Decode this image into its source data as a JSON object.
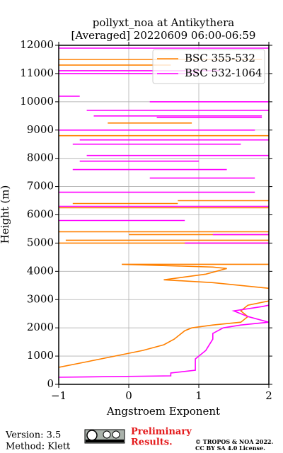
{
  "chart_data": {
    "type": "line",
    "title": "pollyxt_noa at Antikythera",
    "subtitle": "[Averaged] 20220609 06:00-06:59",
    "xlabel": "Angstroem Exponent",
    "ylabel": "Height (m)",
    "xlim": [
      -1,
      2
    ],
    "ylim": [
      0,
      12000
    ],
    "xticks": [
      {
        "value": -1,
        "label": "−1"
      },
      0,
      1,
      2
    ],
    "yticks": [
      0,
      1000,
      2000,
      3000,
      4000,
      5000,
      6000,
      7000,
      8000,
      9000,
      10000,
      11000,
      12000
    ],
    "grid": true,
    "legend": "upper right",
    "series": [
      {
        "name": "BSC 355-532",
        "color": "#ff8000",
        "x": [
          -1,
          -0.6,
          -0.2,
          0.2,
          0.5,
          0.65,
          0.8,
          0.9,
          1.2,
          1.6,
          1.7,
          1.6,
          1.7,
          2,
          null,
          2,
          1.6,
          1.2,
          0.5,
          0.8,
          1.1,
          1.4,
          1.2,
          -0.1,
          2,
          null,
          -1,
          2,
          null,
          -0.9,
          2,
          null,
          0,
          2,
          null,
          -1,
          2,
          null,
          -0.8,
          0.7,
          null,
          -1,
          2,
          null,
          0.7,
          2,
          null,
          -1,
          2,
          null,
          -0.3,
          0.9,
          null,
          -1,
          0.6,
          null,
          -1,
          1.9
        ],
        "y": [
          600,
          800,
          1000,
          1200,
          1400,
          1600,
          1900,
          2000,
          2100,
          2200,
          2400,
          2600,
          2800,
          2950,
          null,
          3400,
          3500,
          3600,
          3700,
          3800,
          3900,
          4100,
          4150,
          4250,
          4250,
          null,
          5000,
          5000,
          null,
          5100,
          5100,
          null,
          5300,
          5300,
          null,
          5400,
          5400,
          null,
          6400,
          6400,
          null,
          6250,
          6250,
          null,
          6500,
          6500,
          null,
          8800,
          8800,
          null,
          9250,
          9250,
          null,
          11300,
          11300,
          null,
          11500,
          11500
        ]
      },
      {
        "name": "BSC 532-1064",
        "color": "#ff00ff",
        "x": [
          -1,
          0.6,
          0.6,
          0.95,
          0.95,
          0.95,
          1.1,
          1.2,
          1.2,
          1.35,
          1.6,
          2,
          1.7,
          1.5,
          1.9,
          2,
          null,
          0.8,
          2,
          null,
          1.2,
          2,
          null,
          -1,
          0.8,
          null,
          -1,
          2,
          null,
          -1,
          1.8,
          null,
          0.3,
          1.8,
          null,
          -0.8,
          1.4,
          null,
          -0.7,
          1,
          null,
          -0.6,
          2,
          null,
          -0.8,
          1.6,
          null,
          -0.7,
          2,
          null,
          -1,
          1.8,
          null,
          0.4,
          1.9,
          null,
          -0.6,
          2,
          null,
          -0.5,
          1.9,
          null,
          0.3,
          2,
          null,
          -1,
          -0.7,
          null,
          -1,
          1,
          null,
          -1,
          1.3,
          null,
          -1,
          2
        ],
        "y": [
          250,
          300,
          400,
          500,
          700,
          900,
          1200,
          1600,
          1800,
          2000,
          2100,
          2200,
          2400,
          2600,
          2750,
          2800,
          null,
          5000,
          5000,
          null,
          5300,
          5300,
          null,
          5800,
          5800,
          null,
          6300,
          6300,
          null,
          6800,
          6800,
          null,
          7300,
          7300,
          null,
          7600,
          7600,
          null,
          7900,
          7900,
          null,
          8100,
          8100,
          null,
          8500,
          8500,
          null,
          8650,
          8650,
          null,
          9000,
          9000,
          null,
          9450,
          9450,
          null,
          9700,
          9700,
          null,
          9500,
          9500,
          null,
          10000,
          10000,
          null,
          10200,
          10200,
          null,
          11000,
          11000,
          null,
          11100,
          11100,
          null,
          11900,
          11900
        ]
      }
    ]
  },
  "footer": {
    "version": "Version: 3.5",
    "method": "Method: Klett",
    "preliminary": [
      "Preliminary",
      "Results."
    ],
    "copyright": [
      "© TROPOS & NOA 2022.",
      "CC BY SA 4.0 License."
    ]
  }
}
